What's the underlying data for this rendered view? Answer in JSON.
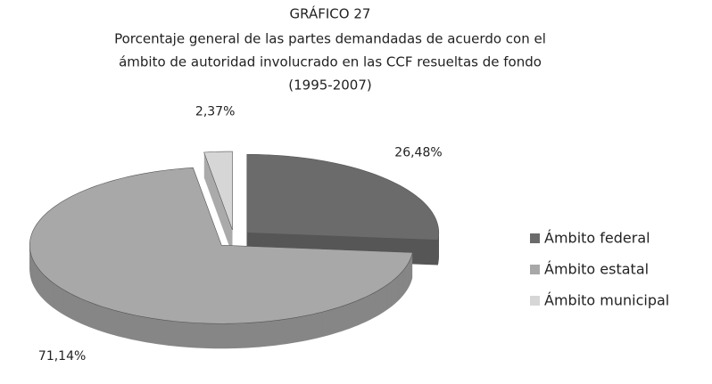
{
  "chart_data": {
    "type": "pie",
    "title": "GRÁFICO 27",
    "subtitle": [
      "Porcentaje general de las partes demandadas de acuerdo con el",
      "ámbito de autoridad involucrado en las CCF resueltas de fondo",
      "(1995-2007)"
    ],
    "categories": [
      "Ámbito federal",
      "Ámbito estatal",
      "Ámbito municipal"
    ],
    "values": [
      26.48,
      71.14,
      2.37
    ],
    "value_labels": [
      "26,48%",
      "71,14%",
      "2,37%"
    ],
    "colors": [
      "#6b6b6b",
      "#a8a8a8",
      "#d6d6d6"
    ],
    "legend": "right"
  }
}
